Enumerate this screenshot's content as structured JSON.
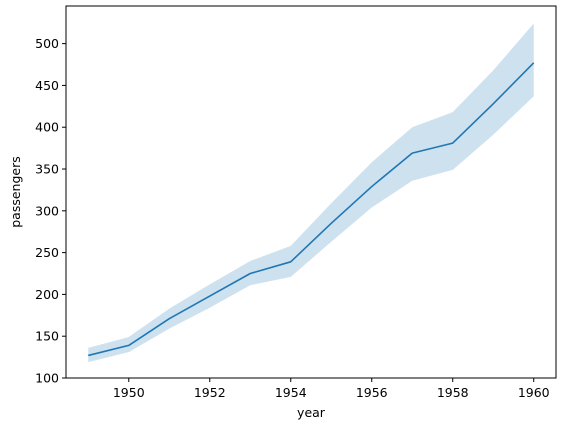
{
  "chart_data": {
    "type": "line",
    "title": "",
    "xlabel": "year",
    "ylabel": "passengers",
    "xlim": [
      1948.45,
      1960.55
    ],
    "ylim": [
      100,
      545
    ],
    "xticks": [
      1950,
      1952,
      1954,
      1956,
      1958,
      1960
    ],
    "yticks": [
      100,
      150,
      200,
      250,
      300,
      350,
      400,
      450,
      500
    ],
    "grid": false,
    "legend": "none",
    "series": [
      {
        "color": "#1f77b4",
        "x": [
          1949,
          1950,
          1951,
          1952,
          1953,
          1954,
          1955,
          1956,
          1957,
          1958,
          1959,
          1960
        ],
        "y": [
          127,
          139,
          171,
          198,
          225,
          239,
          285,
          329,
          369,
          381,
          428,
          477
        ],
        "ci_low": [
          119,
          131,
          159,
          184,
          211,
          221,
          263,
          304,
          336,
          349,
          391,
          437
        ],
        "ci_high": [
          136,
          149,
          183,
          212,
          240,
          258,
          309,
          358,
          400,
          418,
          468,
          524
        ]
      }
    ],
    "band_color": "#1f77b4",
    "band_opacity": 0.22
  }
}
